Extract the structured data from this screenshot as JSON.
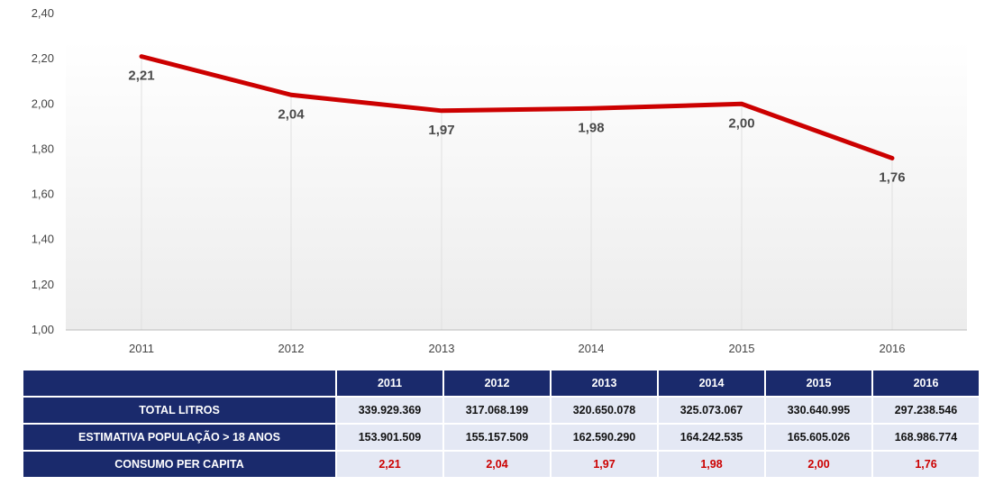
{
  "chart_data": {
    "type": "line",
    "categories": [
      "2011",
      "2012",
      "2013",
      "2014",
      "2015",
      "2016"
    ],
    "series": [
      {
        "values": [
          2.21,
          2.04,
          1.97,
          1.98,
          2.0,
          1.76
        ]
      }
    ],
    "data_labels": [
      "2,21",
      "2,04",
      "1,97",
      "1,98",
      "2,00",
      "1,76"
    ],
    "y_ticks": [
      "1,00",
      "1,20",
      "1,40",
      "1,60",
      "1,80",
      "2,00",
      "2,20",
      "2,40"
    ],
    "ylim": [
      1.0,
      2.4
    ],
    "line_color": "#cc0000",
    "grid": "vertical drop lines"
  },
  "table": {
    "columns": [
      "2011",
      "2012",
      "2013",
      "2014",
      "2015",
      "2016"
    ],
    "rows": [
      {
        "label": "TOTAL LITROS",
        "values": [
          "339.929.369",
          "317.068.199",
          "320.650.078",
          "325.073.067",
          "330.640.995",
          "297.238.546"
        ]
      },
      {
        "label": "ESTIMATIVA POPULAÇÃO > 18 ANOS",
        "values": [
          "153.901.509",
          "155.157.509",
          "162.590.290",
          "164.242.535",
          "165.605.026",
          "168.986.774"
        ]
      },
      {
        "label": "CONSUMO PER CAPITA",
        "values": [
          "2,21",
          "2,04",
          "1,97",
          "1,98",
          "2,00",
          "1,76"
        ]
      }
    ],
    "colors": {
      "header_bg": "#1a2a6c",
      "cell_bg": "#e4e8f4",
      "highlight_text": "#cc0000"
    }
  }
}
